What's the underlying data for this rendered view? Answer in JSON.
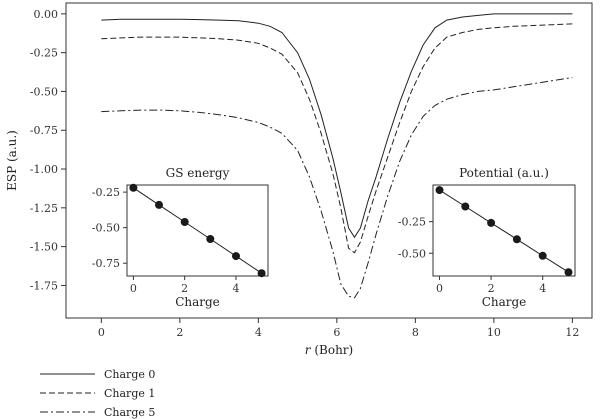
{
  "chart_data": [
    {
      "type": "line",
      "xlabel_italic": "r",
      "xlabel_rest": " (Bohr)",
      "ylabel": "ESP (a.u.)",
      "xlim": [
        -0.9,
        12.5
      ],
      "ylim": [
        -1.96,
        0.07
      ],
      "xticks": [
        0,
        2,
        4,
        6,
        8,
        10,
        12
      ],
      "yticks": [
        0.0,
        -0.25,
        -0.5,
        -0.75,
        -1.0,
        -1.25,
        -1.5,
        -1.75
      ],
      "ytick_labels": [
        "0.00",
        "-0.25",
        "-0.50",
        "-0.75",
        "-1.00",
        "-1.25",
        "-1.50",
        "-1.75"
      ],
      "grid": false,
      "legend_position": "bottom-left, outside plot",
      "series": [
        {
          "name": "Charge 0",
          "style": "solid",
          "x": [
            0,
            0.5,
            1,
            1.5,
            2,
            2.5,
            3,
            3.5,
            4,
            4.3,
            4.6,
            5,
            5.3,
            5.6,
            5.9,
            6.1,
            6.3,
            6.45,
            6.6,
            6.8,
            7.0,
            7.3,
            7.6,
            7.9,
            8.2,
            8.5,
            8.8,
            9.2,
            9.6,
            10,
            10.5,
            11,
            11.5,
            12
          ],
          "y": [
            -0.04,
            -0.035,
            -0.035,
            -0.035,
            -0.035,
            -0.037,
            -0.04,
            -0.045,
            -0.06,
            -0.08,
            -0.12,
            -0.25,
            -0.42,
            -0.65,
            -0.93,
            -1.15,
            -1.38,
            -1.44,
            -1.38,
            -1.2,
            -1.05,
            -0.8,
            -0.57,
            -0.37,
            -0.2,
            -0.09,
            -0.04,
            -0.02,
            -0.01,
            0.0,
            0.0,
            0.0,
            0.0,
            0.0
          ]
        },
        {
          "name": "Charge 1",
          "style": "dashed",
          "x": [
            0,
            0.5,
            1,
            1.5,
            2,
            2.5,
            3,
            3.5,
            4,
            4.3,
            4.6,
            5,
            5.3,
            5.6,
            5.9,
            6.1,
            6.3,
            6.45,
            6.6,
            6.8,
            7.0,
            7.3,
            7.6,
            7.9,
            8.2,
            8.5,
            8.8,
            9.2,
            9.6,
            10,
            10.5,
            11,
            11.5,
            12
          ],
          "y": [
            -0.16,
            -0.155,
            -0.15,
            -0.15,
            -0.15,
            -0.155,
            -0.16,
            -0.17,
            -0.19,
            -0.22,
            -0.26,
            -0.38,
            -0.55,
            -0.77,
            -1.03,
            -1.25,
            -1.51,
            -1.54,
            -1.47,
            -1.3,
            -1.14,
            -0.92,
            -0.7,
            -0.5,
            -0.34,
            -0.22,
            -0.15,
            -0.12,
            -0.1,
            -0.09,
            -0.08,
            -0.075,
            -0.07,
            -0.065
          ]
        },
        {
          "name": "Charge 5",
          "style": "dashdot",
          "x": [
            0,
            0.5,
            1,
            1.5,
            2,
            2.5,
            3,
            3.5,
            4,
            4.3,
            4.6,
            5,
            5.3,
            5.6,
            5.9,
            6.1,
            6.3,
            6.45,
            6.6,
            6.8,
            7.0,
            7.3,
            7.6,
            7.9,
            8.2,
            8.5,
            8.8,
            9.2,
            9.6,
            10,
            10.5,
            11,
            11.5,
            12
          ],
          "y": [
            -0.63,
            -0.625,
            -0.62,
            -0.62,
            -0.625,
            -0.635,
            -0.65,
            -0.67,
            -0.7,
            -0.73,
            -0.77,
            -0.88,
            -1.05,
            -1.27,
            -1.53,
            -1.74,
            -1.82,
            -1.83,
            -1.77,
            -1.6,
            -1.42,
            -1.17,
            -0.95,
            -0.78,
            -0.66,
            -0.59,
            -0.55,
            -0.52,
            -0.5,
            -0.49,
            -0.47,
            -0.45,
            -0.43,
            -0.41
          ]
        }
      ]
    },
    {
      "type": "line",
      "title": "GS energy",
      "xlabel": "Charge",
      "xlim": [
        -0.25,
        5.25
      ],
      "ylim": [
        -0.84,
        -0.2
      ],
      "xticks": [
        0,
        2,
        4
      ],
      "yticks": [
        -0.25,
        -0.5,
        -0.75
      ],
      "ytick_labels": [
        "-0.25",
        "-0.50",
        "-0.75"
      ],
      "series": [
        {
          "x": [
            0,
            1,
            2,
            3,
            4,
            5
          ],
          "y": [
            -0.22,
            -0.34,
            -0.46,
            -0.58,
            -0.7,
            -0.82
          ]
        }
      ]
    },
    {
      "type": "line",
      "title": "Potential (a.u.)",
      "xlabel": "Charge",
      "xlim": [
        -0.25,
        5.25
      ],
      "ylim": [
        -0.68,
        0.04
      ],
      "xticks": [
        0,
        2,
        4
      ],
      "yticks": [
        -0.25,
        -0.5
      ],
      "ytick_labels": [
        "-0.25",
        "-0.50"
      ],
      "series": [
        {
          "x": [
            0,
            1,
            2,
            3,
            4,
            5
          ],
          "y": [
            0.0,
            -0.13,
            -0.26,
            -0.39,
            -0.52,
            -0.65
          ]
        }
      ]
    }
  ]
}
